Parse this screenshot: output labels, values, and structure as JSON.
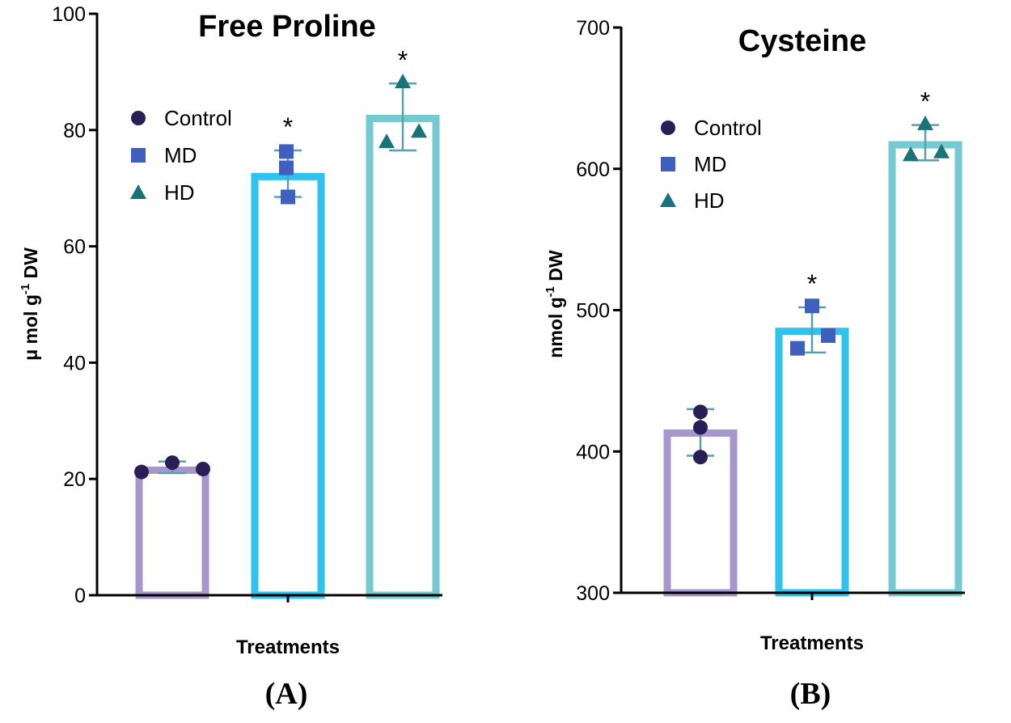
{
  "colors": {
    "control_bar": "#a796cc",
    "md_bar": "#2ec2ef",
    "hd_bar": "#75c9d1",
    "control_marker": "#2a1e57",
    "md_marker": "#3f5fbf",
    "hd_marker": "#1a7377",
    "error_bar": "#5a9fae"
  },
  "chart_data": [
    {
      "type": "bar",
      "panel_label": "(A)",
      "title": "Free Proline",
      "xlabel": "Treatments",
      "ylabel": "μ mol g-1 DW",
      "ylabel_main": "μ mol g",
      "ylabel_sup": "-1",
      "ylabel_unit": " DW",
      "ylim": [
        0,
        100
      ],
      "yticks": [
        "0",
        "20",
        "40",
        "60",
        "80",
        "100"
      ],
      "categories": [
        "Control",
        "MD",
        "HD"
      ],
      "values": [
        21.5,
        72,
        82
      ],
      "error_low": [
        21,
        68.5,
        76.5
      ],
      "error_high": [
        23,
        76.5,
        88
      ],
      "points": [
        [
          21.2,
          22.8,
          21.7
        ],
        [
          68.5,
          73.5,
          76.3
        ],
        [
          78,
          79.8,
          88.3
        ]
      ],
      "significance": [
        "",
        "*",
        "*"
      ],
      "legend": [
        "Control",
        "MD",
        "HD"
      ]
    },
    {
      "type": "bar",
      "panel_label": "(B)",
      "title": "Cysteine",
      "xlabel": "Treatments",
      "ylabel": "nmol g-1 DW",
      "ylabel_main": "nmol g",
      "ylabel_sup": "-1",
      "ylabel_unit": " DW",
      "ylim": [
        300,
        700
      ],
      "yticks": [
        "300",
        "400",
        "500",
        "600",
        "700"
      ],
      "categories": [
        "Control",
        "MD",
        "HD"
      ],
      "values": [
        413,
        485,
        617
      ],
      "error_low": [
        397,
        470,
        606
      ],
      "error_high": [
        430,
        502,
        631
      ],
      "points": [
        [
          396,
          417,
          428
        ],
        [
          473,
          482,
          503
        ],
        [
          610,
          612,
          632
        ]
      ],
      "significance": [
        "",
        "*",
        "*"
      ],
      "legend": [
        "Control",
        "MD",
        "HD"
      ]
    }
  ]
}
